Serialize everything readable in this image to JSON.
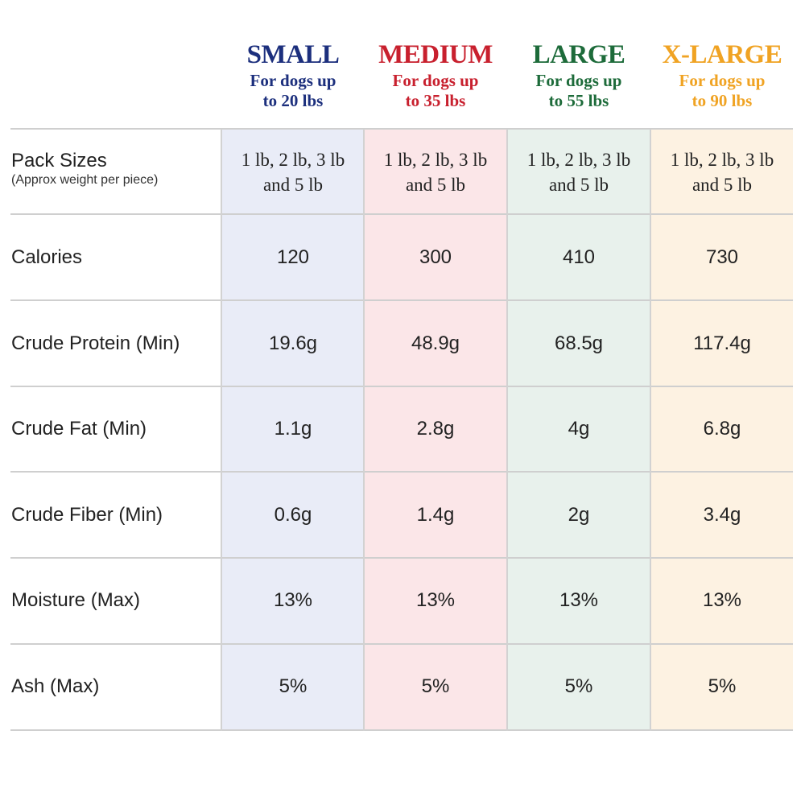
{
  "columns": [
    {
      "title": "SMALL",
      "subtitle": "For dogs up\nto 20 lbs",
      "color": "#1c2f7d",
      "tint": "#e9ecf7"
    },
    {
      "title": "MEDIUM",
      "subtitle": "For dogs up\nto 35 lbs",
      "color": "#c8202e",
      "tint": "#fbe6e8"
    },
    {
      "title": "LARGE",
      "subtitle": "For dogs up\nto 55 lbs",
      "color": "#1d6b3a",
      "tint": "#e8f1ec"
    },
    {
      "title": "X-LARGE",
      "subtitle": "For dogs up\nto 90 lbs",
      "color": "#f0a323",
      "tint": "#fdf2e2"
    }
  ],
  "rows": [
    {
      "label": "Pack Sizes",
      "sublabel": "(Approx weight per piece)",
      "values": [
        "1 lb, 2 lb, 3 lb\nand 5 lb",
        "1 lb, 2 lb, 3 lb\nand 5 lb",
        "1 lb, 2 lb, 3 lb\nand 5 lb",
        "1 lb, 2 lb, 3 lb\nand 5 lb"
      ]
    },
    {
      "label": "Calories",
      "values": [
        "120",
        "300",
        "410",
        "730"
      ]
    },
    {
      "label": "Crude Protein (Min)",
      "values": [
        "19.6g",
        "48.9g",
        "68.5g",
        "117.4g"
      ]
    },
    {
      "label": "Crude Fat (Min)",
      "values": [
        "1.1g",
        "2.8g",
        "4g",
        "6.8g"
      ]
    },
    {
      "label": "Crude Fiber (Min)",
      "values": [
        "0.6g",
        "1.4g",
        "2g",
        "3.4g"
      ]
    },
    {
      "label": "Moisture (Max)",
      "values": [
        "13%",
        "13%",
        "13%",
        "13%"
      ]
    },
    {
      "label": "Ash (Max)",
      "values": [
        "5%",
        "5%",
        "5%",
        "5%"
      ]
    }
  ]
}
